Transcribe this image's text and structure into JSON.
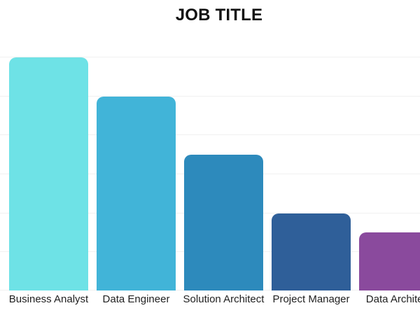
{
  "chart_data": {
    "type": "bar",
    "title": "JOB TITLE",
    "categories": [
      "Business Analyst",
      "Data Engineer",
      "Solution Architect",
      "Project Manager",
      "Data Architect"
    ],
    "values": [
      12,
      10,
      7,
      4,
      3
    ],
    "bar_colors": [
      "#6EE2E6",
      "#41B4D8",
      "#2D8ABC",
      "#2F5F99",
      "#8A4A9D"
    ],
    "xlabel": "",
    "ylabel": "",
    "ylim": [
      0,
      12
    ],
    "gridline_step": 2,
    "grid": true,
    "legend": false,
    "notes": "no y-axis tick labels shown; rightmost bar and its label are clipped by the viewport edge"
  },
  "styles": {
    "background": "#FFFFFF",
    "title_color": "#121212",
    "label_color": "#1F1F1F",
    "gridline_color": "#F1F1F1"
  }
}
